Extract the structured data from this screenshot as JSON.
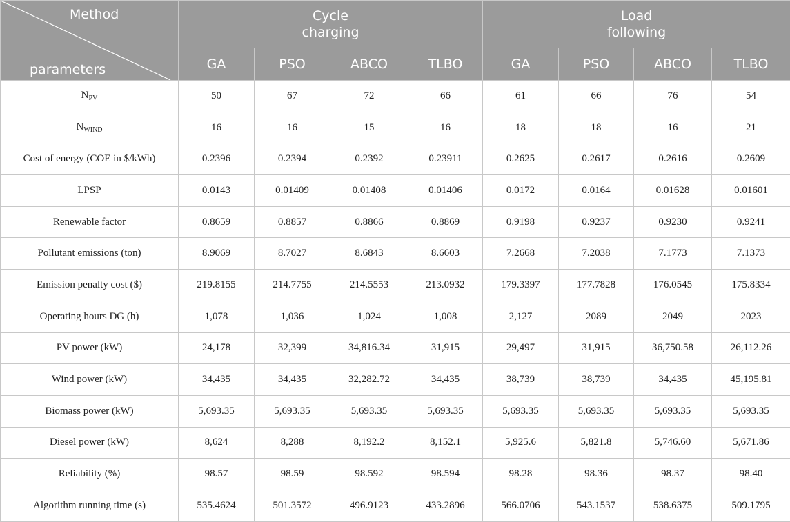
{
  "header": {
    "corner_top": "Method",
    "corner_bottom": "parameters",
    "groups": [
      {
        "line1": "Cycle",
        "line2": "charging"
      },
      {
        "line1": "Load",
        "line2": "following"
      }
    ],
    "algorithms": [
      "GA",
      "PSO",
      "ABCO",
      "TLBO",
      "GA",
      "PSO",
      "ABCO",
      "TLBO"
    ]
  },
  "rows": [
    {
      "label_main": "N",
      "label_sub": "PV",
      "values": [
        "50",
        "67",
        "72",
        "66",
        "61",
        "66",
        "76",
        "54"
      ]
    },
    {
      "label_main": "N",
      "label_sub": "WIND",
      "values": [
        "16",
        "16",
        "15",
        "16",
        "18",
        "18",
        "16",
        "21"
      ]
    },
    {
      "label_main": "Cost of energy (COE in $/kWh)",
      "values": [
        "0.2396",
        "0.2394",
        "0.2392",
        "0.23911",
        "0.2625",
        "0.2617",
        "0.2616",
        "0.2609"
      ]
    },
    {
      "label_main": "LPSP",
      "values": [
        "0.0143",
        "0.01409",
        "0.01408",
        "0.01406",
        "0.0172",
        "0.0164",
        "0.01628",
        "0.01601"
      ]
    },
    {
      "label_main": "Renewable factor",
      "values": [
        "0.8659",
        "0.8857",
        "0.8866",
        "0.8869",
        "0.9198",
        "0.9237",
        "0.9230",
        "0.9241"
      ]
    },
    {
      "label_main": "Pollutant emissions (ton)",
      "values": [
        "8.9069",
        "8.7027",
        "8.6843",
        "8.6603",
        "7.2668",
        "7.2038",
        "7.1773",
        "7.1373"
      ]
    },
    {
      "label_main": "Emission penalty cost ($)",
      "values": [
        "219.8155",
        "214.7755",
        "214.5553",
        "213.0932",
        "179.3397",
        "177.7828",
        "176.0545",
        "175.8334"
      ]
    },
    {
      "label_main": "Operating hours DG (h)",
      "values": [
        "1,078",
        "1,036",
        "1,024",
        "1,008",
        "2,127",
        "2089",
        "2049",
        "2023"
      ]
    },
    {
      "label_main": "PV power (kW)",
      "values": [
        "24,178",
        "32,399",
        "34,816.34",
        "31,915",
        "29,497",
        "31,915",
        "36,750.58",
        "26,112.26"
      ]
    },
    {
      "label_main": "Wind power (kW)",
      "values": [
        "34,435",
        "34,435",
        "32,282.72",
        "34,435",
        "38,739",
        "38,739",
        "34,435",
        "45,195.81"
      ]
    },
    {
      "label_main": "Biomass power (kW)",
      "values": [
        "5,693.35",
        "5,693.35",
        "5,693.35",
        "5,693.35",
        "5,693.35",
        "5,693.35",
        "5,693.35",
        "5,693.35"
      ]
    },
    {
      "label_main": "Diesel power (kW)",
      "values": [
        "8,624",
        "8,288",
        "8,192.2",
        "8,152.1",
        "5,925.6",
        "5,821.8",
        "5,746.60",
        "5,671.86"
      ]
    },
    {
      "label_main": "Reliability (%)",
      "values": [
        "98.57",
        "98.59",
        "98.592",
        "98.594",
        "98.28",
        "98.36",
        "98.37",
        "98.40"
      ]
    },
    {
      "label_main": "Algorithm running time (s)",
      "values": [
        "535.4624",
        "501.3572",
        "496.9123",
        "433.2896",
        "566.0706",
        "543.1537",
        "538.6375",
        "509.1795"
      ]
    }
  ]
}
